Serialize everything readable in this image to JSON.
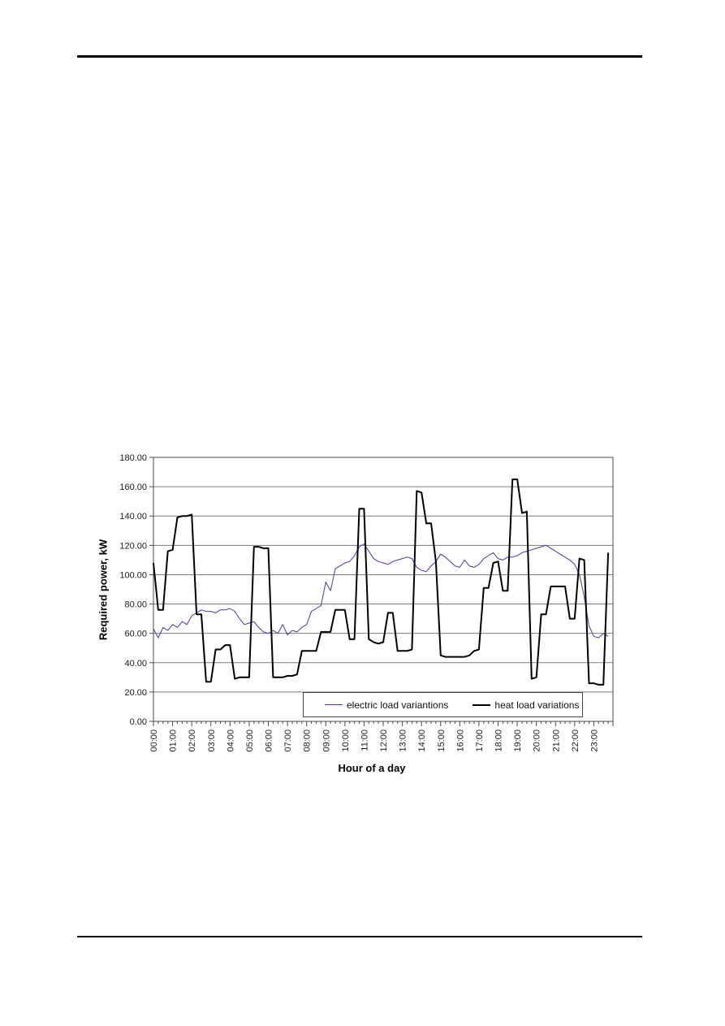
{
  "page": {
    "kind": "document page with embedded chart",
    "header_rule": true,
    "footer_rule": true
  },
  "chart_data": {
    "type": "line",
    "title": "",
    "xlabel": "Hour of a day",
    "ylabel": "Required power, kW",
    "ylim": [
      0,
      180
    ],
    "ytick_step": 20,
    "ytick_labels": [
      "0.00",
      "20.00",
      "40.00",
      "60.00",
      "80.00",
      "100.00",
      "120.00",
      "140.00",
      "160.00",
      "180.00"
    ],
    "xtick_labels": [
      "00:00",
      "01:00",
      "02:00",
      "03:00",
      "04:00",
      "05:00",
      "06:00",
      "07:00",
      "08:00",
      "09:00",
      "10:00",
      "11:00",
      "12:00",
      "13:00",
      "14:00",
      "15:00",
      "16:00",
      "17:00",
      "18:00",
      "19:00",
      "20:00",
      "21:00",
      "22:00",
      "23:00"
    ],
    "x_interval_minutes": 15,
    "grid": "horizontal",
    "legend_position": "bottom-inside",
    "frame_color": "#4a4a4a",
    "gridline_color": "#7a7a7a",
    "series": [
      {
        "name": "electric load variantions",
        "color": "#3f3f9a",
        "stroke_width": 1,
        "values": [
          63,
          57,
          64,
          62,
          66,
          64,
          68,
          66,
          72,
          74,
          76,
          75,
          75,
          74,
          76,
          76,
          77,
          75,
          70,
          66,
          67,
          68,
          64,
          61,
          60,
          62,
          60,
          66,
          59,
          62,
          61,
          64,
          66,
          75,
          77,
          79,
          95,
          89,
          104,
          106,
          108,
          109,
          113,
          119,
          121,
          116,
          111,
          109,
          108,
          107,
          109,
          110,
          111,
          112,
          111,
          105,
          103,
          102,
          106,
          109,
          114,
          112,
          109,
          106,
          105,
          110,
          106,
          105,
          107,
          111,
          113,
          115,
          111,
          110,
          112,
          112,
          113,
          115,
          116,
          117,
          118,
          119,
          120,
          118,
          116,
          114,
          112,
          110,
          107,
          100,
          85,
          65,
          58,
          57,
          60,
          58
        ]
      },
      {
        "name": "heat load variations",
        "color": "#000000",
        "stroke_width": 2,
        "values": [
          108,
          76,
          76,
          116,
          117,
          139,
          140,
          140,
          141,
          73,
          73,
          27,
          27,
          49,
          49,
          52,
          52,
          29,
          30,
          30,
          30,
          119,
          119,
          118,
          118,
          30,
          30,
          30,
          31,
          31,
          32,
          48,
          48,
          48,
          48,
          61,
          61,
          61,
          76,
          76,
          76,
          56,
          56,
          145,
          145,
          56,
          54,
          53,
          54,
          74,
          74,
          48,
          48,
          48,
          49,
          157,
          156,
          135,
          135,
          109,
          45,
          44,
          44,
          44,
          44,
          44,
          45,
          48,
          49,
          91,
          91,
          108,
          109,
          89,
          89,
          165,
          165,
          142,
          143,
          29,
          30,
          73,
          73,
          92,
          92,
          92,
          92,
          70,
          70,
          111,
          110,
          26,
          26,
          25,
          25,
          115
        ]
      }
    ]
  }
}
